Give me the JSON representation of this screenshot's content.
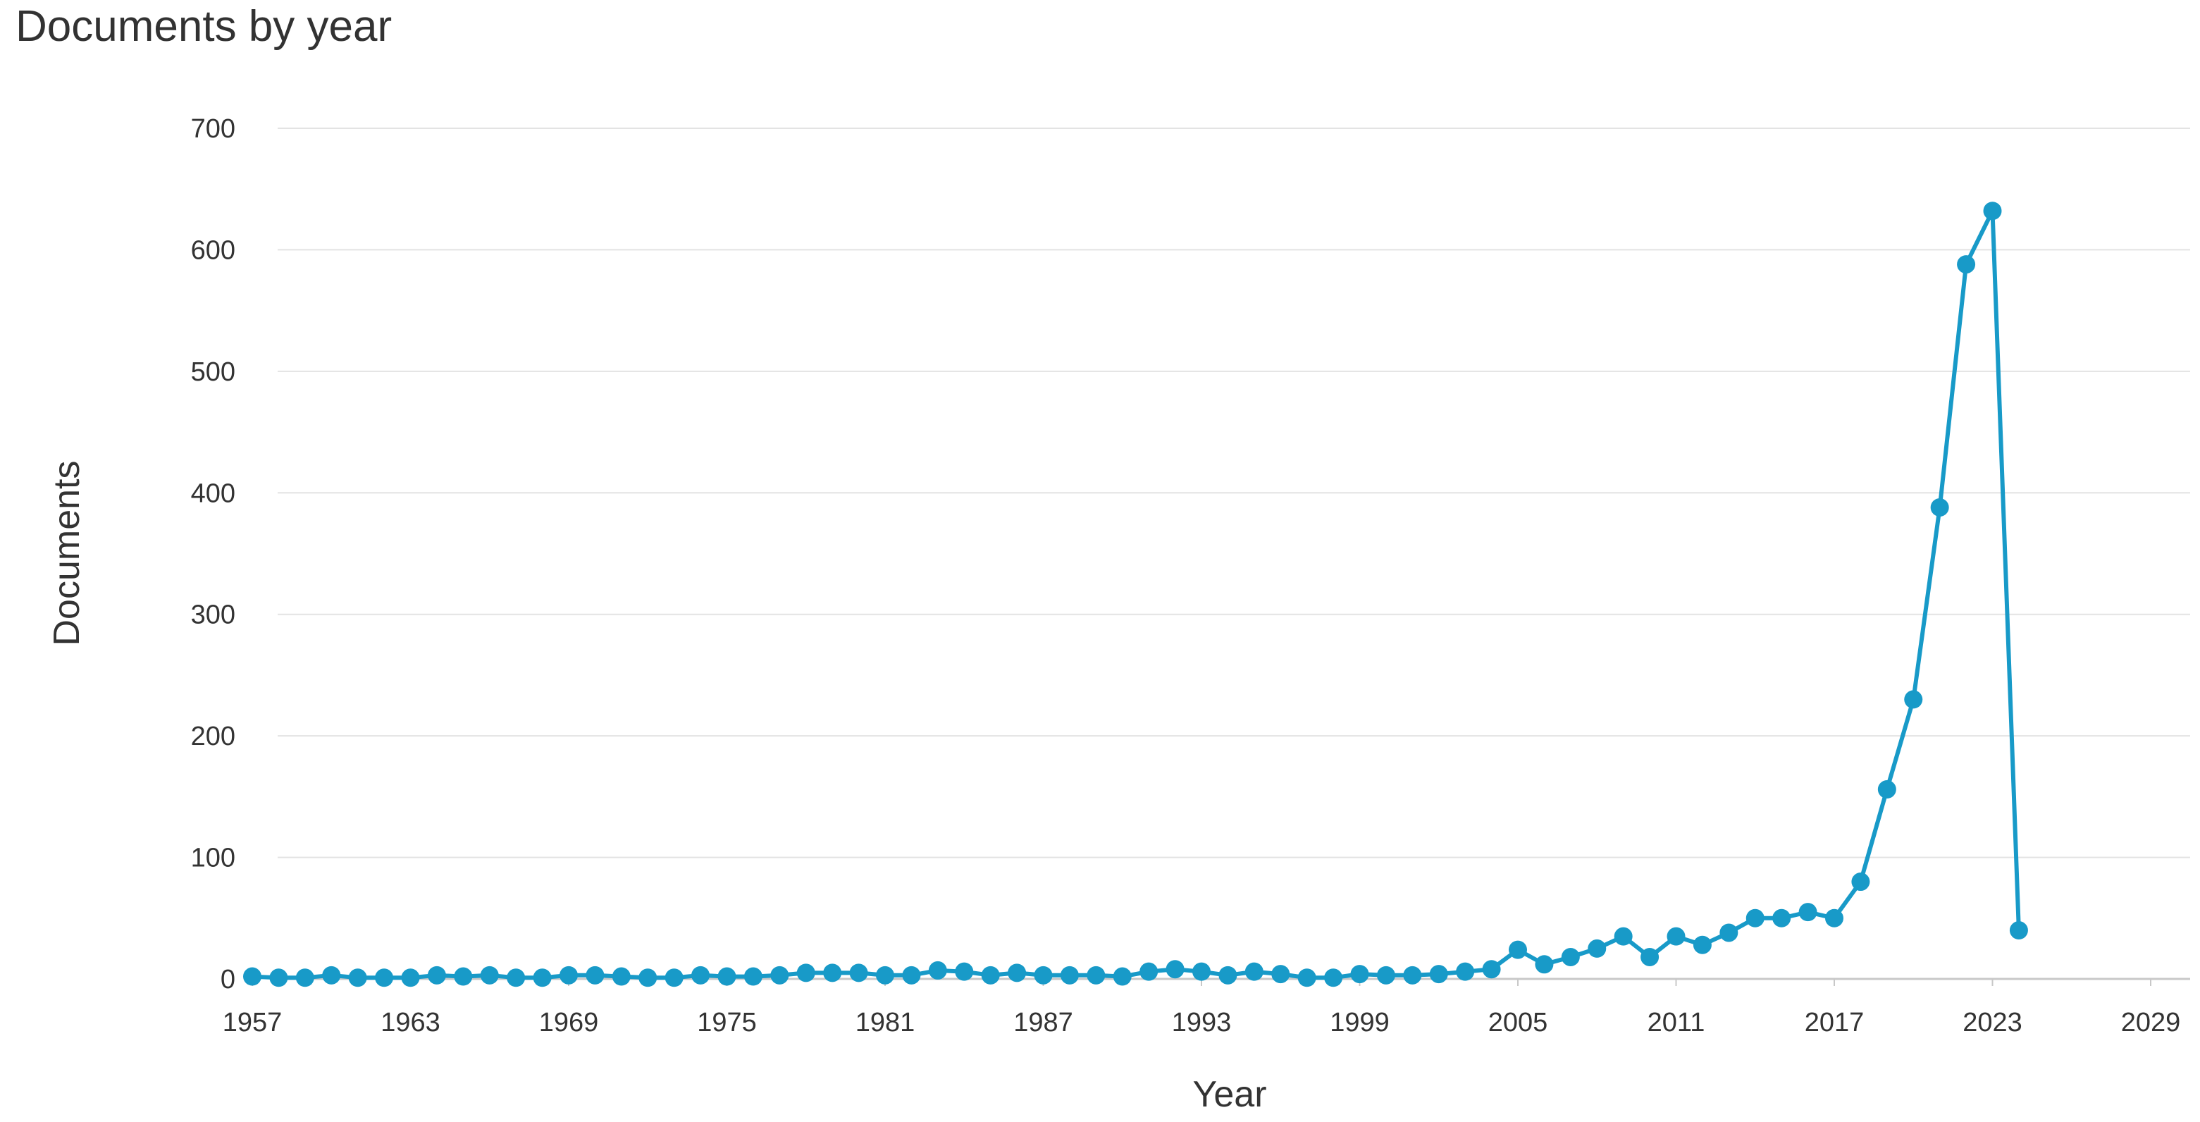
{
  "chart_data": {
    "type": "line",
    "title": "Documents by year",
    "xlabel": "Year",
    "ylabel": "Documents",
    "xlim": [
      1957,
      2029
    ],
    "ylim": [
      0,
      700
    ],
    "x_ticks": [
      1957,
      1963,
      1969,
      1975,
      1981,
      1987,
      1993,
      1999,
      2005,
      2011,
      2017,
      2023,
      2029
    ],
    "y_ticks": [
      0,
      100,
      200,
      300,
      400,
      500,
      600,
      700
    ],
    "grid": true,
    "legend": "none",
    "color": "#189AC8",
    "series": [
      {
        "x": [
          1957,
          1958,
          1959,
          1960,
          1961,
          1962,
          1963,
          1964,
          1965,
          1966,
          1967,
          1968,
          1969,
          1970,
          1971,
          1972,
          1973,
          1974,
          1975,
          1976,
          1977,
          1978,
          1979,
          1980,
          1981,
          1982,
          1983,
          1984,
          1985,
          1986,
          1987,
          1988,
          1989,
          1990,
          1991,
          1992,
          1993,
          1994,
          1995,
          1996,
          1997,
          1998,
          1999,
          2000,
          2001,
          2002,
          2003,
          2004,
          2005,
          2006,
          2007,
          2008,
          2009,
          2010,
          2011,
          2012,
          2013,
          2014,
          2015,
          2016,
          2017,
          2018,
          2019,
          2020,
          2021,
          2022,
          2023,
          2024
        ],
        "values": [
          2,
          1,
          1,
          3,
          1,
          1,
          1,
          3,
          2,
          3,
          1,
          1,
          3,
          3,
          2,
          1,
          1,
          3,
          2,
          2,
          3,
          5,
          5,
          5,
          3,
          3,
          7,
          6,
          3,
          5,
          3,
          3,
          3,
          2,
          6,
          8,
          6,
          3,
          6,
          4,
          1,
          1,
          4,
          3,
          3,
          4,
          6,
          8,
          24,
          12,
          18,
          25,
          35,
          18,
          35,
          28,
          38,
          50,
          50,
          55,
          50,
          80,
          156,
          230,
          388,
          588,
          632,
          40
        ]
      }
    ]
  }
}
